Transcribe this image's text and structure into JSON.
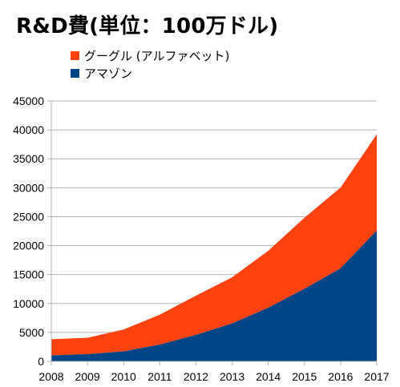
{
  "chart_data": {
    "type": "area",
    "stacked": true,
    "title": "R&D費(単位：100万ドル)",
    "xlabel": "",
    "ylabel": "",
    "categories": [
      "2008",
      "2009",
      "2010",
      "2011",
      "2012",
      "2013",
      "2014",
      "2015",
      "2016",
      "2017"
    ],
    "series": [
      {
        "name": "アマゾン",
        "color": "#004586",
        "values": [
          1033,
          1240,
          1734,
          2909,
          4564,
          6565,
          9275,
          12540,
          16085,
          22620
        ]
      },
      {
        "name": "グーグル (アルファベット)",
        "color": "#ff420e",
        "values": [
          2793,
          2843,
          3762,
          5162,
          6793,
          7952,
          9832,
          12282,
          13948,
          16625
        ]
      }
    ],
    "ylim": [
      0,
      45000
    ],
    "yticks": [
      "0",
      "5000",
      "10000",
      "15000",
      "20000",
      "25000",
      "30000",
      "35000",
      "40000",
      "45000"
    ],
    "grid": true,
    "legend_position": "top-left"
  }
}
